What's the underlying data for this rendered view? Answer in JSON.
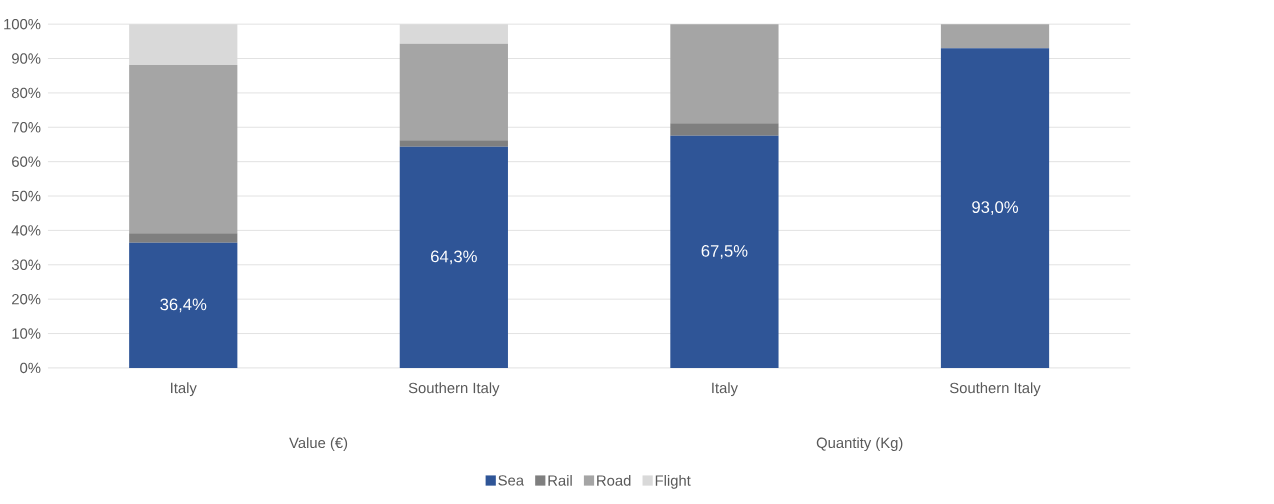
{
  "chart_data": {
    "type": "bar",
    "stacked": true,
    "categories": [
      "Italy",
      "Southern Italy",
      "Italy",
      "Southern Italy"
    ],
    "annotations": [
      "Value (€)",
      "Quantity (Kg)"
    ],
    "series": [
      {
        "name": "Sea",
        "color": "#2f5597",
        "values": [
          36.4,
          64.3,
          67.5,
          93.0
        ],
        "value_labels": [
          "36,4%",
          "64,3%",
          "67,5%",
          "93,0%"
        ]
      },
      {
        "name": "Rail",
        "color": "#7f7f7f",
        "values": [
          2.8,
          1.9,
          3.7,
          0
        ]
      },
      {
        "name": "Road",
        "color": "#a5a5a5",
        "values": [
          48.9,
          28.1,
          28.8,
          7.0
        ]
      },
      {
        "name": "Flight",
        "color": "#d9d9d9",
        "values": [
          11.9,
          5.7,
          0,
          0
        ]
      }
    ],
    "ylim": [
      0,
      100
    ],
    "yticks": [
      {
        "value": 0,
        "label": "0%"
      },
      {
        "value": 10,
        "label": "10%"
      },
      {
        "value": 20,
        "label": "20%"
      },
      {
        "value": 30,
        "label": "30%"
      },
      {
        "value": 40,
        "label": "40%"
      },
      {
        "value": 50,
        "label": "50%"
      },
      {
        "value": 60,
        "label": "60%"
      },
      {
        "value": 70,
        "label": "70%"
      },
      {
        "value": 80,
        "label": "80%"
      },
      {
        "value": 90,
        "label": "90%"
      },
      {
        "value": 100,
        "label": "100%"
      }
    ],
    "grid": "y",
    "legend": "bottom"
  }
}
